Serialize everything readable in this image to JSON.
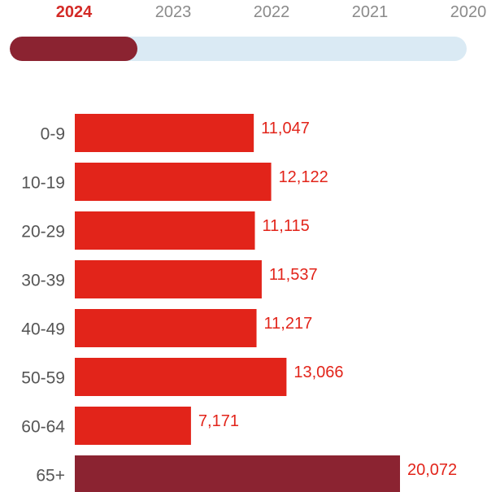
{
  "year_selector": {
    "years": [
      {
        "label": "2024",
        "active": true
      },
      {
        "label": "2023",
        "active": false
      },
      {
        "label": "2022",
        "active": false
      },
      {
        "label": "2021",
        "active": false
      },
      {
        "label": "2020",
        "active": false
      }
    ],
    "progress_fraction": 0.28,
    "active_color": "#d32a26",
    "track_color": "#daeaf4",
    "fill_color": "#8b2331"
  },
  "chart_data": {
    "type": "bar",
    "orientation": "horizontal",
    "categories": [
      "0-9",
      "10-19",
      "20-29",
      "30-39",
      "40-49",
      "50-59",
      "60-64",
      "65+"
    ],
    "values": [
      11047,
      12122,
      11115,
      11537,
      11217,
      13066,
      7171,
      20072
    ],
    "value_labels": [
      "11,047",
      "12,122",
      "11,115",
      "11,537",
      "11,217",
      "13,066",
      "7,171",
      "20,072"
    ],
    "xlim": [
      0,
      20072
    ],
    "grid": false,
    "bar_color": "#e2241a",
    "highlight_color": "#8b2331",
    "highlight_index": 7,
    "label_color": "#e2241a",
    "category_color": "#555555"
  }
}
